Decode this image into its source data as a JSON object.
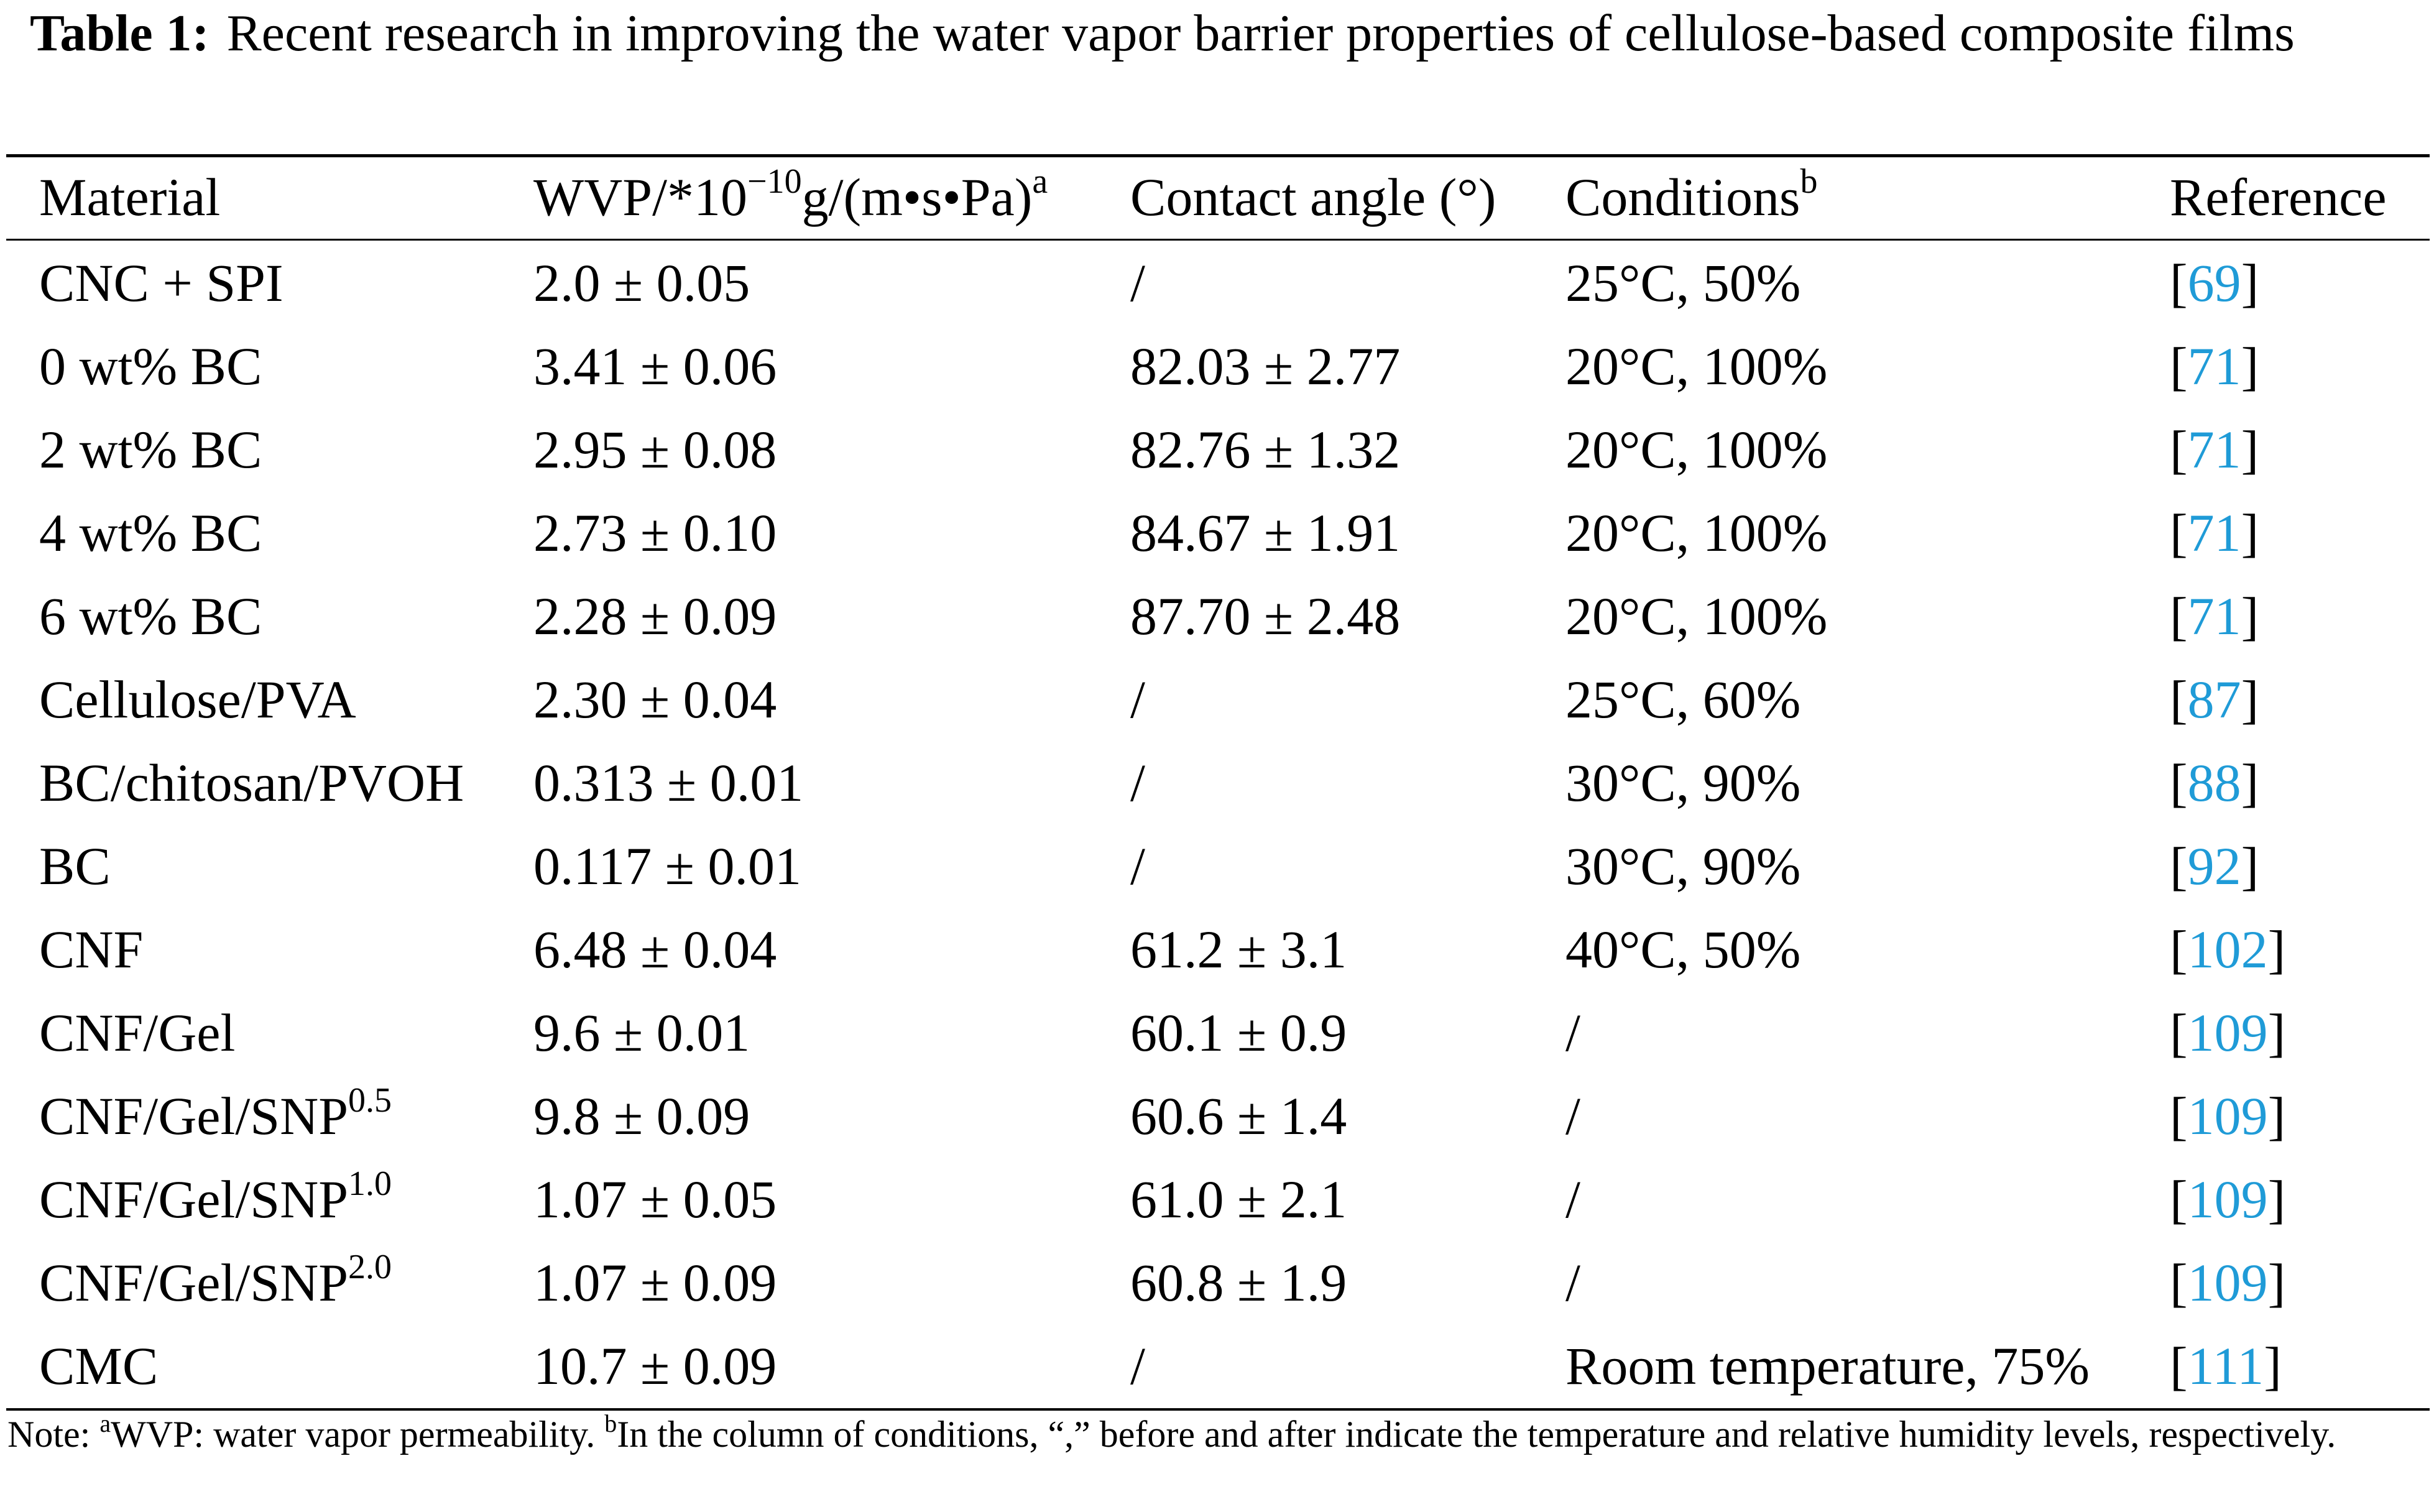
{
  "caption": {
    "label": "Table 1:",
    "text": "Recent research in improving the water vapor barrier properties of cellulose-based composite films"
  },
  "headers": {
    "material": "Material",
    "wvp_main": "WVP/*10",
    "wvp_exp": "−10",
    "wvp_unit": "g/(m•s•Pa)",
    "wvp_note": "a",
    "angle": "Contact angle (°)",
    "conditions": "Conditions",
    "conditions_note": "b",
    "reference": "Reference"
  },
  "rows": [
    {
      "material": "CNC + SPI",
      "material_sup": "",
      "wvp": "2.0 ± 0.05",
      "angle": "/",
      "conditions": "25°C, 50%",
      "ref": "69"
    },
    {
      "material": "0 wt% BC",
      "material_sup": "",
      "wvp": "3.41 ± 0.06",
      "angle": "82.03 ± 2.77",
      "conditions": "20°C, 100%",
      "ref": "71"
    },
    {
      "material": "2 wt% BC",
      "material_sup": "",
      "wvp": "2.95 ± 0.08",
      "angle": "82.76 ± 1.32",
      "conditions": "20°C, 100%",
      "ref": "71"
    },
    {
      "material": "4 wt% BC",
      "material_sup": "",
      "wvp": "2.73 ± 0.10",
      "angle": "84.67 ± 1.91",
      "conditions": "20°C, 100%",
      "ref": "71"
    },
    {
      "material": "6 wt% BC",
      "material_sup": "",
      "wvp": "2.28 ± 0.09",
      "angle": "87.70 ± 2.48",
      "conditions": "20°C, 100%",
      "ref": "71"
    },
    {
      "material": "Cellulose/PVA",
      "material_sup": "",
      "wvp": "2.30 ± 0.04",
      "angle": "/",
      "conditions": "25°C, 60%",
      "ref": "87"
    },
    {
      "material": "BC/chitosan/PVOH",
      "material_sup": "",
      "wvp": "0.313 ± 0.01",
      "angle": "/",
      "conditions": "30°C, 90%",
      "ref": "88"
    },
    {
      "material": "BC",
      "material_sup": "",
      "wvp": "0.117 ± 0.01",
      "angle": "/",
      "conditions": "30°C, 90%",
      "ref": "92"
    },
    {
      "material": "CNF",
      "material_sup": "",
      "wvp": "6.48 ± 0.04",
      "angle": "61.2 ± 3.1",
      "conditions": "40°C, 50%",
      "ref": "102"
    },
    {
      "material": "CNF/Gel",
      "material_sup": "",
      "wvp": "9.6 ± 0.01",
      "angle": "60.1 ± 0.9",
      "conditions": "/",
      "ref": "109"
    },
    {
      "material": "CNF/Gel/SNP",
      "material_sup": "0.5",
      "wvp": "9.8 ± 0.09",
      "angle": "60.6 ± 1.4",
      "conditions": "/",
      "ref": "109"
    },
    {
      "material": "CNF/Gel/SNP",
      "material_sup": "1.0",
      "wvp": "1.07 ± 0.05",
      "angle": "61.0 ± 2.1",
      "conditions": "/",
      "ref": "109"
    },
    {
      "material": "CNF/Gel/SNP",
      "material_sup": "2.0",
      "wvp": "1.07 ± 0.09",
      "angle": "60.8 ± 1.9",
      "conditions": "/",
      "ref": "109"
    },
    {
      "material": "CMC",
      "material_sup": "",
      "wvp": "10.7 ± 0.09",
      "angle": "/",
      "conditions": "Room temperature, 75%",
      "ref": "111"
    }
  ],
  "note": {
    "prefix": "Note: ",
    "a_mark": "a",
    "a_text": "WVP: water vapor permeability. ",
    "b_mark": "b",
    "b_text": "In the column of conditions, “,” before and after indicate the temperature and relative humidity levels, respectively."
  },
  "colors": {
    "reference_link": "#1f9bd7"
  }
}
